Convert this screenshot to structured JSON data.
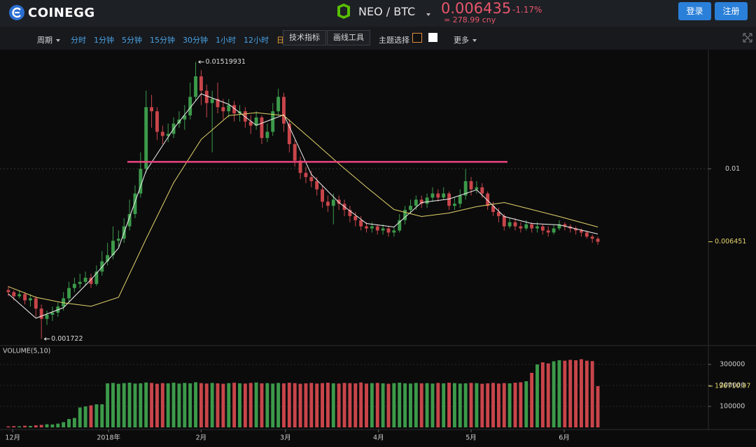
{
  "header": {
    "logo": "COINEGG",
    "pair": "NEO / BTC",
    "price": "0.006435",
    "change": "-1.17%",
    "cny": "≈ 278.99 cny",
    "login": "登录",
    "register": "注册"
  },
  "toolbar": {
    "period": "周期",
    "intervals": [
      "分时",
      "1分钟",
      "5分钟",
      "15分钟",
      "30分钟",
      "1小时",
      "12小时",
      "日线"
    ],
    "active": 7,
    "indicators": "技术指标",
    "drawing": "画线工具",
    "theme": "主题选择",
    "more": "更多"
  },
  "chart_data": {
    "type": "candlestick",
    "volume_title": "VOLUME(5,10)",
    "up_color": "#3c9a4a",
    "down_color": "#c8454a",
    "xlim": [
      -0.5,
      107.5
    ],
    "xticks": [
      {
        "value": 0.8,
        "label": "12月"
      },
      {
        "value": 18.2,
        "label": "2018年"
      },
      {
        "value": 35,
        "label": "2月"
      },
      {
        "value": 50.3,
        "label": "3月"
      },
      {
        "value": 67.2,
        "label": "4月"
      },
      {
        "value": 84,
        "label": "5月"
      },
      {
        "value": 100.9,
        "label": "6月"
      }
    ],
    "ylim": [
      0.0014,
      0.0159
    ],
    "yticks": [
      0.01
    ],
    "volume_ylim": [
      0,
      380000
    ],
    "volume_yticks": [
      100000,
      200000,
      300000
    ],
    "price_marker": 0.006451,
    "open": [
      0.0041,
      0.004,
      0.0038,
      0.0039,
      0.0036,
      0.0037,
      0.0032,
      0.0027,
      0.0029,
      0.003,
      0.0033,
      0.0037,
      0.0042,
      0.0044,
      0.0045,
      0.0047,
      0.0044,
      0.005,
      0.0055,
      0.0058,
      0.0065,
      0.0066,
      0.0072,
      0.0078,
      0.0088,
      0.01,
      0.013,
      0.0128,
      0.0118,
      0.0116,
      0.0117,
      0.0122,
      0.0124,
      0.0126,
      0.0135,
      0.0145,
      0.0138,
      0.0132,
      0.0134,
      0.013,
      0.0128,
      0.0131,
      0.0127,
      0.0128,
      0.0123,
      0.0121,
      0.0125,
      0.0115,
      0.0118,
      0.0128,
      0.0135,
      0.0122,
      0.0112,
      0.0104,
      0.0098,
      0.0096,
      0.0094,
      0.009,
      0.0084,
      0.0082,
      0.0085,
      0.0083,
      0.008,
      0.0077,
      0.0075,
      0.0072,
      0.0071,
      0.0072,
      0.007,
      0.0071,
      0.0069,
      0.007,
      0.0075,
      0.008,
      0.0082,
      0.0085,
      0.0083,
      0.0086,
      0.0088,
      0.0086,
      0.0088,
      0.0082,
      0.0083,
      0.0087,
      0.0094,
      0.009,
      0.0091,
      0.0088,
      0.0082,
      0.0079,
      0.0077,
      0.0072,
      0.0074,
      0.0072,
      0.0071,
      0.0073,
      0.0071,
      0.0072,
      0.007,
      0.0069,
      0.0071,
      0.0073,
      0.0072,
      0.0071,
      0.007,
      0.0069,
      0.0067,
      0.0066
    ],
    "close": [
      0.004,
      0.0038,
      0.0039,
      0.0036,
      0.0037,
      0.0032,
      0.0027,
      0.0029,
      0.003,
      0.0033,
      0.0037,
      0.0042,
      0.0044,
      0.0045,
      0.0047,
      0.0044,
      0.005,
      0.0055,
      0.0058,
      0.0065,
      0.0066,
      0.0072,
      0.0078,
      0.0088,
      0.01,
      0.013,
      0.0128,
      0.0118,
      0.0116,
      0.0117,
      0.0122,
      0.0124,
      0.0126,
      0.0135,
      0.0145,
      0.0138,
      0.0132,
      0.0134,
      0.013,
      0.0128,
      0.0131,
      0.0127,
      0.0128,
      0.0123,
      0.0121,
      0.0125,
      0.0115,
      0.0118,
      0.0128,
      0.0135,
      0.0122,
      0.0112,
      0.0104,
      0.0098,
      0.0096,
      0.0094,
      0.009,
      0.0084,
      0.0082,
      0.0085,
      0.0083,
      0.008,
      0.0077,
      0.0075,
      0.0072,
      0.0071,
      0.0072,
      0.007,
      0.0071,
      0.0069,
      0.007,
      0.0075,
      0.008,
      0.0082,
      0.0085,
      0.0083,
      0.0086,
      0.0088,
      0.0086,
      0.0088,
      0.0082,
      0.0083,
      0.0087,
      0.0094,
      0.009,
      0.0091,
      0.0088,
      0.0082,
      0.0079,
      0.0077,
      0.0072,
      0.0074,
      0.0072,
      0.0071,
      0.0073,
      0.0071,
      0.0072,
      0.007,
      0.0069,
      0.0071,
      0.0073,
      0.0072,
      0.0071,
      0.007,
      0.0069,
      0.0067,
      0.0066,
      0.00645
    ],
    "high": [
      0.0043,
      0.0041,
      0.0041,
      0.004,
      0.0039,
      0.0038,
      0.0034,
      0.0031,
      0.0033,
      0.0035,
      0.004,
      0.0045,
      0.0047,
      0.0049,
      0.005,
      0.0049,
      0.0053,
      0.006,
      0.0064,
      0.0072,
      0.007,
      0.0076,
      0.0085,
      0.0092,
      0.0108,
      0.0138,
      0.0136,
      0.013,
      0.0121,
      0.0122,
      0.0125,
      0.0128,
      0.0131,
      0.0142,
      0.01519931,
      0.0148,
      0.0141,
      0.0138,
      0.0142,
      0.0134,
      0.0134,
      0.0133,
      0.0131,
      0.013,
      0.0126,
      0.0128,
      0.0126,
      0.0122,
      0.0132,
      0.0139,
      0.0137,
      0.0124,
      0.0114,
      0.0106,
      0.0101,
      0.0099,
      0.0096,
      0.0092,
      0.0087,
      0.0088,
      0.0087,
      0.0085,
      0.0082,
      0.0079,
      0.0077,
      0.0074,
      0.0074,
      0.0073,
      0.0073,
      0.0072,
      0.0072,
      0.0078,
      0.0082,
      0.0085,
      0.0087,
      0.0087,
      0.0088,
      0.0091,
      0.009,
      0.0091,
      0.0089,
      0.0086,
      0.009,
      0.01,
      0.0096,
      0.0094,
      0.0093,
      0.0089,
      0.0084,
      0.0081,
      0.0078,
      0.0076,
      0.0076,
      0.0074,
      0.0075,
      0.0074,
      0.0074,
      0.0073,
      0.0072,
      0.0073,
      0.0075,
      0.0074,
      0.0073,
      0.0072,
      0.0071,
      0.007,
      0.0068,
      0.0067
    ],
    "low": [
      0.0038,
      0.0036,
      0.0037,
      0.0034,
      0.0033,
      0.0028,
      0.001722,
      0.0024,
      0.0026,
      0.0028,
      0.0031,
      0.0035,
      0.004,
      0.0042,
      0.0043,
      0.0042,
      0.0043,
      0.0048,
      0.0053,
      0.0056,
      0.0062,
      0.0064,
      0.007,
      0.0076,
      0.0086,
      0.0098,
      0.012,
      0.0114,
      0.0112,
      0.0113,
      0.0115,
      0.012,
      0.0119,
      0.0124,
      0.0133,
      0.0131,
      0.0125,
      0.0108,
      0.0127,
      0.0124,
      0.0125,
      0.0123,
      0.0123,
      0.012,
      0.0117,
      0.0119,
      0.0112,
      0.0113,
      0.0116,
      0.0126,
      0.0118,
      0.0108,
      0.0101,
      0.0095,
      0.0093,
      0.0091,
      0.0087,
      0.0081,
      0.0079,
      0.0073,
      0.008,
      0.0077,
      0.0074,
      0.0072,
      0.007,
      0.0069,
      0.0069,
      0.0068,
      0.0068,
      0.0067,
      0.0067,
      0.0069,
      0.0073,
      0.0078,
      0.008,
      0.0081,
      0.0081,
      0.0084,
      0.0084,
      0.0085,
      0.008,
      0.008,
      0.0081,
      0.0085,
      0.0087,
      0.0088,
      0.0086,
      0.008,
      0.0077,
      0.0074,
      0.007,
      0.0071,
      0.007,
      0.0069,
      0.007,
      0.0069,
      0.0069,
      0.0068,
      0.0067,
      0.0068,
      0.007,
      0.007,
      0.0069,
      0.0068,
      0.0067,
      0.0066,
      0.0064,
      0.0063
    ],
    "volume": [
      5000,
      6000,
      5000,
      8000,
      7000,
      10000,
      12000,
      15000,
      14000,
      18000,
      25000,
      40000,
      45000,
      95000,
      100000,
      105000,
      110000,
      110000,
      210000,
      212000,
      208000,
      211000,
      213000,
      209000,
      210000,
      214000,
      212000,
      208000,
      211000,
      210000,
      213000,
      209000,
      212000,
      210000,
      215000,
      211000,
      209000,
      212000,
      210000,
      208000,
      211000,
      213000,
      210000,
      209000,
      212000,
      214000,
      210000,
      211000,
      209000,
      212000,
      210000,
      213000,
      211000,
      208000,
      210000,
      212000,
      209000,
      211000,
      213000,
      210000,
      209000,
      212000,
      211000,
      210000,
      214000,
      209000,
      211000,
      212000,
      210000,
      208000,
      211000,
      213000,
      210000,
      209000,
      212000,
      210000,
      211000,
      209000,
      212000,
      210000,
      213000,
      211000,
      209000,
      210000,
      212000,
      211000,
      208000,
      210000,
      212000,
      209000,
      211000,
      210000,
      213000,
      215000,
      220000,
      260000,
      300000,
      310000,
      305000,
      315000,
      320000,
      318000,
      322000,
      320000,
      325000,
      318000,
      316000,
      196710.97
    ],
    "ma_lines": [
      {
        "color": "#f2f2f2",
        "x": [
          0,
          5,
          10,
          15,
          20,
          25,
          30,
          35,
          40,
          45,
          50,
          55,
          60,
          65,
          70,
          75,
          80,
          85,
          90,
          95,
          100,
          107
        ],
        "values": [
          0.00392,
          0.00273,
          0.00324,
          0.00461,
          0.00614,
          0.0099,
          0.01195,
          0.01365,
          0.01314,
          0.01212,
          0.01263,
          0.00973,
          0.00836,
          0.00734,
          0.00717,
          0.00836,
          0.00853,
          0.00898,
          0.00768,
          0.00734,
          0.00727,
          0.00683
        ]
      },
      {
        "color": "#e3d36a",
        "x": [
          0,
          5,
          10,
          15,
          20,
          25,
          30,
          35,
          40,
          45,
          50,
          55,
          60,
          65,
          70,
          75,
          80,
          85,
          90,
          95,
          100,
          107
        ],
        "values": [
          0.00427,
          0.00375,
          0.00348,
          0.00331,
          0.00375,
          0.00659,
          0.00932,
          0.01143,
          0.01259,
          0.01273,
          0.01259,
          0.01143,
          0.01024,
          0.00911,
          0.00802,
          0.00768,
          0.00785,
          0.00816,
          0.00836,
          0.00802,
          0.00768,
          0.00717
        ]
      }
    ],
    "trend_line": {
      "value": 0.01034,
      "x": [
        21.6,
        90.6
      ],
      "color": "#e8457e"
    }
  }
}
